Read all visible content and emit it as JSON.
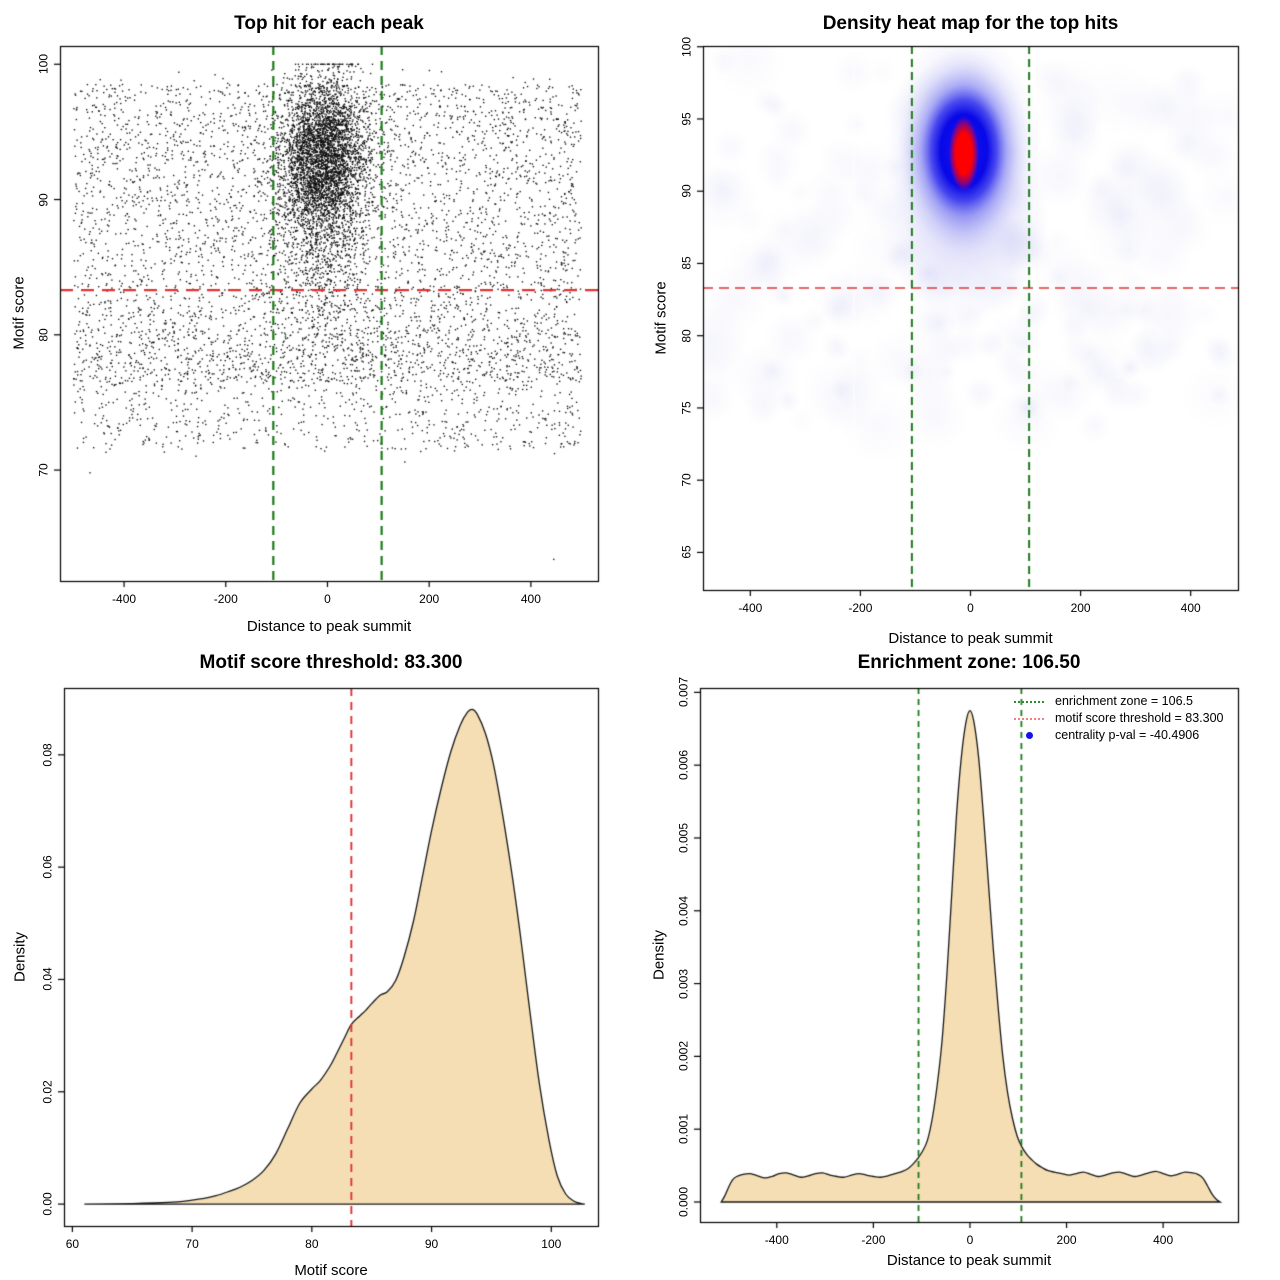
{
  "background_color": "#ffffff",
  "colors": {
    "threshold": "#e23333",
    "zone": "#1e7a1e",
    "point": "#101010",
    "density_fill": "#f5deb3",
    "curve_stroke": "#1a1a1a",
    "frame": "#000000",
    "legend_green": "#2e8b2e",
    "legend_pink": "#f08080",
    "legend_blue": "#1414e6",
    "heat_core": "#ff0000",
    "heat_blue": "#0a0ae6",
    "heat_faint": "#a0a3e8"
  },
  "thresholds": {
    "motif_score_threshold": 83.3,
    "enrichment_zone_half_width": 106.5,
    "centrality_p_val": -40.4906
  },
  "chart_data": [
    {
      "type": "scatter",
      "title": "Top hit for each peak",
      "xlabel": "Distance to peak summit",
      "ylabel": "Motif score",
      "axis": {
        "xlim": [
          -526,
          532
        ],
        "ylim": [
          61.8,
          101.35
        ],
        "xticks": {
          "values": [
            -400,
            -200,
            0,
            200,
            400
          ],
          "labels": [
            "-400",
            "-200",
            "0",
            "200",
            "400"
          ]
        },
        "yticks": {
          "values": [
            70,
            80,
            90,
            100
          ],
          "labels": [
            "70",
            "80",
            "90",
            "100"
          ]
        }
      },
      "lines": [
        {
          "role": "threshold",
          "orient": "h",
          "value": 83.3
        },
        {
          "role": "zone",
          "orient": "v",
          "value": -106.5
        },
        {
          "role": "zone",
          "orient": "v",
          "value": 106.5
        }
      ],
      "points": {
        "background": {
          "n": 5200,
          "x_range": [
            -499,
            499
          ],
          "frac_main": 0.74,
          "y_main_range": [
            76.5,
            98.5
          ],
          "frac_low": 0.18,
          "y_low_range": [
            71.5,
            80.5
          ],
          "y_full_range": [
            71,
            99.8
          ]
        },
        "cluster": {
          "n": 4400,
          "x_mean": -8,
          "x_sd": 44,
          "y_mean": 93.2,
          "y_sd": 2.9,
          "tail_frac": 0.18,
          "tail_y_mean": 87.5,
          "tail_y_sd": 4.2,
          "y_max": 100
        },
        "outliers": [
          [
            445,
            63.4
          ],
          [
            -467,
            69.8
          ],
          [
            152,
            70.6
          ]
        ]
      }
    },
    {
      "type": "heatmap",
      "title": "Density heat map for the top hits",
      "xlabel": "Distance to peak summit",
      "ylabel": "Motif score",
      "axis": {
        "xlim": [
          -486,
          486
        ],
        "ylim": [
          62.4,
          100.05
        ],
        "xticks": {
          "values": [
            -400,
            -200,
            0,
            200,
            400
          ],
          "labels": [
            "-400",
            "-200",
            "0",
            "200",
            "400"
          ]
        },
        "yticks": {
          "values": [
            65,
            70,
            75,
            80,
            85,
            90,
            95,
            100
          ],
          "labels": [
            "65",
            "70",
            "75",
            "80",
            "85",
            "90",
            "95",
            "100"
          ]
        }
      },
      "lines": [
        {
          "role": "threshold",
          "orient": "h",
          "value": 83.3
        },
        {
          "role": "zone",
          "orient": "v",
          "value": -106.5
        },
        {
          "role": "zone",
          "orient": "v",
          "value": 106.5
        }
      ],
      "hotspot": {
        "x": -12,
        "y": 92.8
      },
      "noise_band": {
        "y_range": [
          73.5,
          99.5
        ],
        "n_blobs": 150
      },
      "palette": [
        "#ffffff",
        "#c8c8f0",
        "#0000ee",
        "#ff0000"
      ]
    },
    {
      "type": "area",
      "title": "Motif score threshold: 83.300",
      "xlabel": "Motif score",
      "ylabel": "Density",
      "axis": {
        "xlim": [
          59.3,
          103.9
        ],
        "ylim": [
          -0.0039,
          0.0919
        ],
        "xticks": {
          "values": [
            60,
            70,
            80,
            90,
            100
          ],
          "labels": [
            "60",
            "70",
            "80",
            "90",
            "100"
          ]
        },
        "yticks": {
          "values": [
            0,
            0.02,
            0.04,
            0.06,
            0.08
          ],
          "labels": [
            "0.00",
            "0.02",
            "0.04",
            "0.06",
            "0.08"
          ]
        }
      },
      "lines": [
        {
          "role": "threshold",
          "orient": "v",
          "value": 83.3
        }
      ],
      "curve": [
        [
          61,
          0
        ],
        [
          65,
          0.0001
        ],
        [
          68,
          0.0003
        ],
        [
          70,
          0.0007
        ],
        [
          71,
          0.001
        ],
        [
          72,
          0.0015
        ],
        [
          73,
          0.0022
        ],
        [
          74,
          0.003
        ],
        [
          75,
          0.0042
        ],
        [
          76,
          0.006
        ],
        [
          77,
          0.009
        ],
        [
          78,
          0.0135
        ],
        [
          79,
          0.018
        ],
        [
          80,
          0.0205
        ],
        [
          80.7,
          0.022
        ],
        [
          81.5,
          0.0245
        ],
        [
          82,
          0.0265
        ],
        [
          82.7,
          0.0295
        ],
        [
          83.3,
          0.032
        ],
        [
          84,
          0.0335
        ],
        [
          84.5,
          0.0345
        ],
        [
          85,
          0.0357
        ],
        [
          85.7,
          0.0372
        ],
        [
          86.3,
          0.0378
        ],
        [
          87,
          0.0398
        ],
        [
          87.7,
          0.044
        ],
        [
          88.5,
          0.0505
        ],
        [
          89.3,
          0.059
        ],
        [
          90,
          0.0665
        ],
        [
          90.8,
          0.074
        ],
        [
          91.6,
          0.0805
        ],
        [
          92.4,
          0.0853
        ],
        [
          93,
          0.0876
        ],
        [
          93.4,
          0.0881
        ],
        [
          93.8,
          0.0873
        ],
        [
          94.5,
          0.0838
        ],
        [
          95.2,
          0.078
        ],
        [
          96,
          0.0685
        ],
        [
          96.8,
          0.0575
        ],
        [
          97.5,
          0.0465
        ],
        [
          98.2,
          0.0345
        ],
        [
          99,
          0.0215
        ],
        [
          99.8,
          0.0115
        ],
        [
          100.5,
          0.005
        ],
        [
          101.2,
          0.0018
        ],
        [
          101.9,
          0.0005
        ],
        [
          102.5,
          0.0001
        ],
        [
          102.8,
          0
        ]
      ]
    },
    {
      "type": "area",
      "title": "Enrichment zone: 106.50",
      "xlabel": "Distance to peak summit",
      "ylabel": "Density",
      "axis": {
        "xlim": [
          -559,
          555
        ],
        "ylim": [
          -0.000275,
          0.00706
        ],
        "xticks": {
          "values": [
            -400,
            -200,
            0,
            200,
            400
          ],
          "labels": [
            "-400",
            "-200",
            "0",
            "200",
            "400"
          ]
        },
        "yticks": {
          "values": [
            0,
            0.001,
            0.002,
            0.003,
            0.004,
            0.005,
            0.006,
            0.007
          ],
          "labels": [
            "0.000",
            "0.001",
            "0.002",
            "0.003",
            "0.004",
            "0.005",
            "0.006",
            "0.007"
          ]
        }
      },
      "lines": [
        {
          "role": "zone",
          "orient": "v",
          "value": -106.5
        },
        {
          "role": "zone",
          "orient": "v",
          "value": 106.5
        }
      ],
      "curve": [
        [
          -515,
          0
        ],
        [
          -508,
          8e-05
        ],
        [
          -500,
          0.0002
        ],
        [
          -492,
          0.0003
        ],
        [
          -483,
          0.00035
        ],
        [
          -470,
          0.00038
        ],
        [
          -455,
          0.00039
        ],
        [
          -440,
          0.00036
        ],
        [
          -425,
          0.00033
        ],
        [
          -410,
          0.00035
        ],
        [
          -395,
          0.00039
        ],
        [
          -380,
          0.0004
        ],
        [
          -365,
          0.00037
        ],
        [
          -350,
          0.00034
        ],
        [
          -335,
          0.00036
        ],
        [
          -320,
          0.00039
        ],
        [
          -305,
          0.0004
        ],
        [
          -290,
          0.00037
        ],
        [
          -275,
          0.00035
        ],
        [
          -260,
          0.00034
        ],
        [
          -245,
          0.00037
        ],
        [
          -230,
          0.00039
        ],
        [
          -215,
          0.00037
        ],
        [
          -200,
          0.00035
        ],
        [
          -185,
          0.00034
        ],
        [
          -170,
          0.00036
        ],
        [
          -155,
          0.00039
        ],
        [
          -140,
          0.00042
        ],
        [
          -128,
          0.00046
        ],
        [
          -118,
          0.00052
        ],
        [
          -108,
          0.0006
        ],
        [
          -98,
          0.0007
        ],
        [
          -88,
          0.00085
        ],
        [
          -78,
          0.00115
        ],
        [
          -68,
          0.0016
        ],
        [
          -58,
          0.0022
        ],
        [
          -48,
          0.0031
        ],
        [
          -38,
          0.0042
        ],
        [
          -28,
          0.0053
        ],
        [
          -18,
          0.0061
        ],
        [
          -8,
          0.0066
        ],
        [
          0,
          0.00675
        ],
        [
          8,
          0.0066
        ],
        [
          18,
          0.0061
        ],
        [
          28,
          0.0053
        ],
        [
          38,
          0.0044
        ],
        [
          48,
          0.0035
        ],
        [
          58,
          0.0027
        ],
        [
          68,
          0.002
        ],
        [
          78,
          0.0015
        ],
        [
          88,
          0.00115
        ],
        [
          98,
          0.0009
        ],
        [
          108,
          0.00075
        ],
        [
          118,
          0.00065
        ],
        [
          128,
          0.00058
        ],
        [
          138,
          0.00052
        ],
        [
          150,
          0.00047
        ],
        [
          162,
          0.00043
        ],
        [
          175,
          0.00041
        ],
        [
          190,
          0.00039
        ],
        [
          205,
          0.00037
        ],
        [
          220,
          0.00039
        ],
        [
          235,
          0.00041
        ],
        [
          250,
          0.00038
        ],
        [
          265,
          0.00035
        ],
        [
          280,
          0.00037
        ],
        [
          295,
          0.0004
        ],
        [
          310,
          0.00041
        ],
        [
          325,
          0.00038
        ],
        [
          340,
          0.00035
        ],
        [
          355,
          0.00037
        ],
        [
          370,
          0.0004
        ],
        [
          385,
          0.00042
        ],
        [
          400,
          0.00039
        ],
        [
          415,
          0.00036
        ],
        [
          430,
          0.00038
        ],
        [
          445,
          0.00041
        ],
        [
          460,
          0.0004
        ],
        [
          472,
          0.00038
        ],
        [
          482,
          0.00033
        ],
        [
          492,
          0.00022
        ],
        [
          502,
          0.0001
        ],
        [
          511,
          3e-05
        ],
        [
          518,
          0
        ]
      ],
      "legend": {
        "items": [
          {
            "label": "enrichment zone = 106.5",
            "swatch": "green-dotted"
          },
          {
            "label": "motif score threshold = 83.300",
            "swatch": "pink-dotted"
          },
          {
            "label": "centrality p-val = -40.4906",
            "swatch": "blue-dot"
          }
        ]
      }
    }
  ]
}
